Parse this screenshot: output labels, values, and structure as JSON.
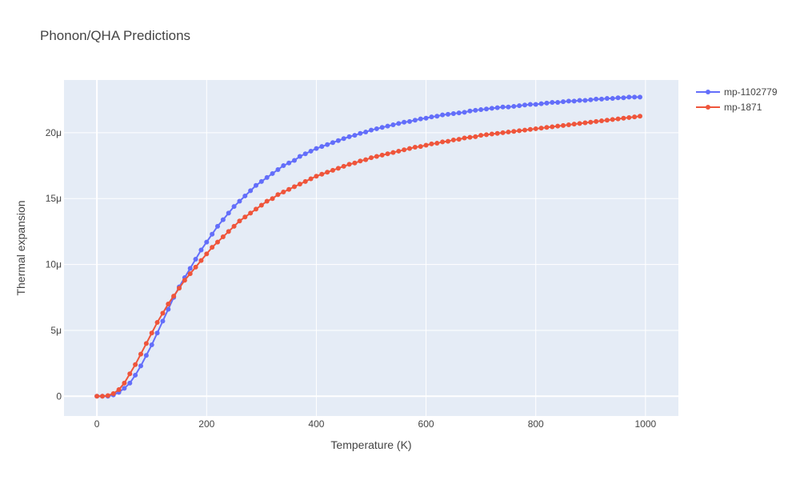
{
  "chart_data": {
    "type": "line",
    "title": "Phonon/QHA Predictions",
    "xlabel": "Temperature (K)",
    "ylabel": "Thermal expansion",
    "xlim": [
      -60,
      1060
    ],
    "ylim": [
      -1.5,
      24.0
    ],
    "unit_scale": 1e-06,
    "xticks": [
      0,
      200,
      400,
      600,
      800,
      1000
    ],
    "xtick_labels": [
      "0",
      "200",
      "400",
      "600",
      "800",
      "1000"
    ],
    "yticks": [
      0,
      5,
      10,
      15,
      20
    ],
    "ytick_labels": [
      "0",
      "5μ",
      "10μ",
      "15μ",
      "20μ"
    ],
    "grid": true,
    "legend_position": "top-right",
    "x": [
      0,
      10,
      20,
      30,
      40,
      50,
      60,
      70,
      80,
      90,
      100,
      110,
      120,
      130,
      140,
      150,
      160,
      170,
      180,
      190,
      200,
      210,
      220,
      230,
      240,
      250,
      260,
      270,
      280,
      290,
      300,
      310,
      320,
      330,
      340,
      350,
      360,
      370,
      380,
      390,
      400,
      410,
      420,
      430,
      440,
      450,
      460,
      470,
      480,
      490,
      500,
      510,
      520,
      530,
      540,
      550,
      560,
      570,
      580,
      590,
      600,
      610,
      620,
      630,
      640,
      650,
      660,
      670,
      680,
      690,
      700,
      710,
      720,
      730,
      740,
      750,
      760,
      770,
      780,
      790,
      800,
      810,
      820,
      830,
      840,
      850,
      860,
      870,
      880,
      890,
      900,
      910,
      920,
      930,
      940,
      950,
      960,
      970,
      980,
      990
    ],
    "series": [
      {
        "name": "mp-1102779",
        "color": "#636efa",
        "values": [
          0,
          0,
          0,
          0.1,
          0.3,
          0.6,
          1.0,
          1.6,
          2.3,
          3.1,
          3.9,
          4.8,
          5.7,
          6.6,
          7.5,
          8.3,
          9.0,
          9.7,
          10.4,
          11.1,
          11.7,
          12.3,
          12.9,
          13.4,
          13.9,
          14.4,
          14.8,
          15.2,
          15.6,
          16.0,
          16.3,
          16.6,
          16.9,
          17.2,
          17.5,
          17.7,
          17.9,
          18.2,
          18.4,
          18.6,
          18.8,
          18.95,
          19.1,
          19.25,
          19.4,
          19.55,
          19.7,
          19.8,
          19.95,
          20.05,
          20.2,
          20.3,
          20.4,
          20.5,
          20.6,
          20.7,
          20.8,
          20.85,
          20.95,
          21.05,
          21.1,
          21.2,
          21.25,
          21.35,
          21.4,
          21.45,
          21.5,
          21.55,
          21.65,
          21.7,
          21.75,
          21.8,
          21.85,
          21.9,
          21.95,
          21.95,
          22.0,
          22.05,
          22.1,
          22.15,
          22.15,
          22.2,
          22.25,
          22.3,
          22.3,
          22.35,
          22.4,
          22.4,
          22.45,
          22.45,
          22.5,
          22.55,
          22.55,
          22.6,
          22.6,
          22.65,
          22.65,
          22.7,
          22.7,
          22.7
        ]
      },
      {
        "name": "mp-1871",
        "color": "#ef553b",
        "values": [
          0,
          0,
          0.05,
          0.2,
          0.5,
          1.0,
          1.7,
          2.4,
          3.2,
          4.0,
          4.8,
          5.6,
          6.3,
          7.0,
          7.6,
          8.2,
          8.8,
          9.3,
          9.8,
          10.3,
          10.8,
          11.3,
          11.7,
          12.1,
          12.5,
          12.9,
          13.3,
          13.6,
          13.9,
          14.2,
          14.5,
          14.8,
          15.0,
          15.3,
          15.5,
          15.7,
          15.9,
          16.1,
          16.3,
          16.5,
          16.7,
          16.85,
          17.0,
          17.15,
          17.3,
          17.45,
          17.6,
          17.7,
          17.85,
          17.95,
          18.1,
          18.2,
          18.3,
          18.4,
          18.5,
          18.6,
          18.7,
          18.8,
          18.9,
          18.95,
          19.05,
          19.15,
          19.2,
          19.3,
          19.35,
          19.45,
          19.5,
          19.6,
          19.65,
          19.7,
          19.8,
          19.85,
          19.9,
          19.95,
          20.0,
          20.05,
          20.1,
          20.15,
          20.2,
          20.25,
          20.3,
          20.35,
          20.4,
          20.45,
          20.5,
          20.55,
          20.6,
          20.65,
          20.7,
          20.75,
          20.8,
          20.85,
          20.9,
          20.95,
          21.0,
          21.05,
          21.1,
          21.15,
          21.2,
          21.25
        ]
      }
    ]
  }
}
